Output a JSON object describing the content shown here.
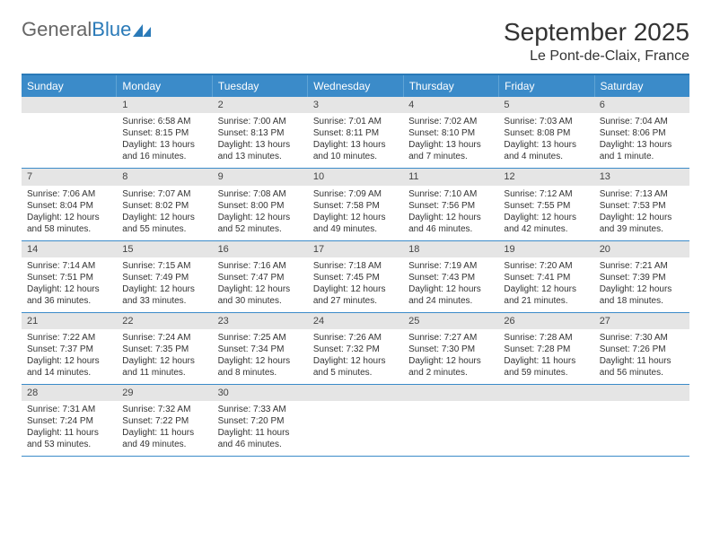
{
  "logo": {
    "text1": "General",
    "text2": "Blue"
  },
  "title": "September 2025",
  "location": "Le Pont-de-Claix, France",
  "colors": {
    "header_bg": "#3b8bc9",
    "header_border_top": "#2a7ab8",
    "daynum_bg": "#e5e5e5",
    "week_border": "#3b8bc9"
  },
  "day_names": [
    "Sunday",
    "Monday",
    "Tuesday",
    "Wednesday",
    "Thursday",
    "Friday",
    "Saturday"
  ],
  "labels": {
    "sunrise": "Sunrise:",
    "sunset": "Sunset:",
    "daylight": "Daylight:"
  },
  "weeks": [
    [
      null,
      {
        "n": "1",
        "sr": "6:58 AM",
        "ss": "8:15 PM",
        "dl": "13 hours and 16 minutes."
      },
      {
        "n": "2",
        "sr": "7:00 AM",
        "ss": "8:13 PM",
        "dl": "13 hours and 13 minutes."
      },
      {
        "n": "3",
        "sr": "7:01 AM",
        "ss": "8:11 PM",
        "dl": "13 hours and 10 minutes."
      },
      {
        "n": "4",
        "sr": "7:02 AM",
        "ss": "8:10 PM",
        "dl": "13 hours and 7 minutes."
      },
      {
        "n": "5",
        "sr": "7:03 AM",
        "ss": "8:08 PM",
        "dl": "13 hours and 4 minutes."
      },
      {
        "n": "6",
        "sr": "7:04 AM",
        "ss": "8:06 PM",
        "dl": "13 hours and 1 minute."
      }
    ],
    [
      {
        "n": "7",
        "sr": "7:06 AM",
        "ss": "8:04 PM",
        "dl": "12 hours and 58 minutes."
      },
      {
        "n": "8",
        "sr": "7:07 AM",
        "ss": "8:02 PM",
        "dl": "12 hours and 55 minutes."
      },
      {
        "n": "9",
        "sr": "7:08 AM",
        "ss": "8:00 PM",
        "dl": "12 hours and 52 minutes."
      },
      {
        "n": "10",
        "sr": "7:09 AM",
        "ss": "7:58 PM",
        "dl": "12 hours and 49 minutes."
      },
      {
        "n": "11",
        "sr": "7:10 AM",
        "ss": "7:56 PM",
        "dl": "12 hours and 46 minutes."
      },
      {
        "n": "12",
        "sr": "7:12 AM",
        "ss": "7:55 PM",
        "dl": "12 hours and 42 minutes."
      },
      {
        "n": "13",
        "sr": "7:13 AM",
        "ss": "7:53 PM",
        "dl": "12 hours and 39 minutes."
      }
    ],
    [
      {
        "n": "14",
        "sr": "7:14 AM",
        "ss": "7:51 PM",
        "dl": "12 hours and 36 minutes."
      },
      {
        "n": "15",
        "sr": "7:15 AM",
        "ss": "7:49 PM",
        "dl": "12 hours and 33 minutes."
      },
      {
        "n": "16",
        "sr": "7:16 AM",
        "ss": "7:47 PM",
        "dl": "12 hours and 30 minutes."
      },
      {
        "n": "17",
        "sr": "7:18 AM",
        "ss": "7:45 PM",
        "dl": "12 hours and 27 minutes."
      },
      {
        "n": "18",
        "sr": "7:19 AM",
        "ss": "7:43 PM",
        "dl": "12 hours and 24 minutes."
      },
      {
        "n": "19",
        "sr": "7:20 AM",
        "ss": "7:41 PM",
        "dl": "12 hours and 21 minutes."
      },
      {
        "n": "20",
        "sr": "7:21 AM",
        "ss": "7:39 PM",
        "dl": "12 hours and 18 minutes."
      }
    ],
    [
      {
        "n": "21",
        "sr": "7:22 AM",
        "ss": "7:37 PM",
        "dl": "12 hours and 14 minutes."
      },
      {
        "n": "22",
        "sr": "7:24 AM",
        "ss": "7:35 PM",
        "dl": "12 hours and 11 minutes."
      },
      {
        "n": "23",
        "sr": "7:25 AM",
        "ss": "7:34 PM",
        "dl": "12 hours and 8 minutes."
      },
      {
        "n": "24",
        "sr": "7:26 AM",
        "ss": "7:32 PM",
        "dl": "12 hours and 5 minutes."
      },
      {
        "n": "25",
        "sr": "7:27 AM",
        "ss": "7:30 PM",
        "dl": "12 hours and 2 minutes."
      },
      {
        "n": "26",
        "sr": "7:28 AM",
        "ss": "7:28 PM",
        "dl": "11 hours and 59 minutes."
      },
      {
        "n": "27",
        "sr": "7:30 AM",
        "ss": "7:26 PM",
        "dl": "11 hours and 56 minutes."
      }
    ],
    [
      {
        "n": "28",
        "sr": "7:31 AM",
        "ss": "7:24 PM",
        "dl": "11 hours and 53 minutes."
      },
      {
        "n": "29",
        "sr": "7:32 AM",
        "ss": "7:22 PM",
        "dl": "11 hours and 49 minutes."
      },
      {
        "n": "30",
        "sr": "7:33 AM",
        "ss": "7:20 PM",
        "dl": "11 hours and 46 minutes."
      },
      null,
      null,
      null,
      null
    ]
  ]
}
